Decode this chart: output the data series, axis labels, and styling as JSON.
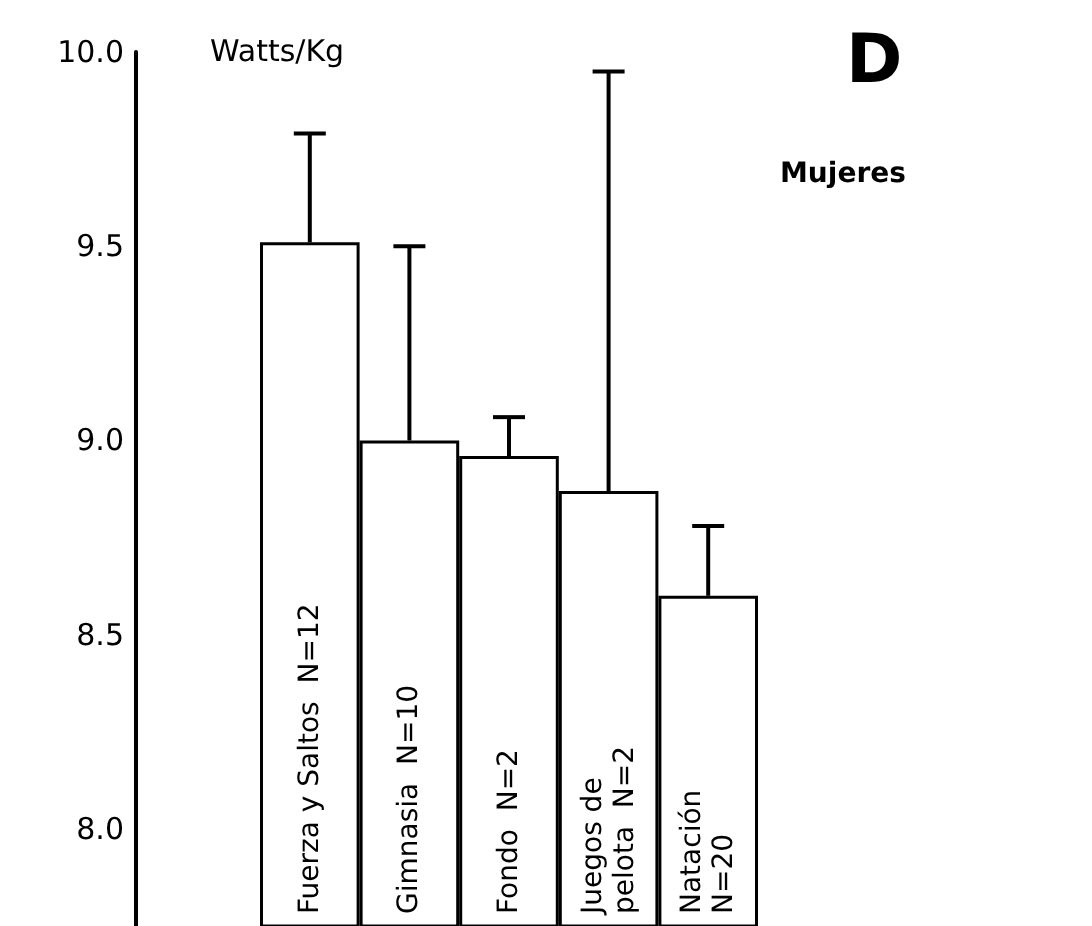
{
  "chart_data": {
    "type": "bar",
    "title": "D",
    "ylabel": "Watts/Kg",
    "annotations": [
      "Mujeres"
    ],
    "categories": [
      "Fuerza y Saltos  N=12",
      "Gimnasia  N=10",
      "Fondo  N=2",
      "Juegos de\npelota  N=2",
      "Natación\nN=20"
    ],
    "values": [
      9.51,
      9.0,
      8.96,
      8.87,
      8.6
    ],
    "errors": [
      [
        9.51,
        9.79
      ],
      [
        9.0,
        9.5
      ],
      [
        8.96,
        9.06
      ],
      [
        8.87,
        9.95
      ],
      [
        8.6,
        8.78
      ]
    ],
    "color": "#ffffff",
    "ylim": [
      7.75,
      10.0
    ],
    "yticks": [
      {
        "value": 8,
        "label": "8.0"
      },
      {
        "value": 8.5,
        "label": "8.5"
      },
      {
        "value": 9,
        "label": "9.0"
      },
      {
        "value": 9.5,
        "label": "9.5"
      },
      {
        "value": 10,
        "label": "10.0"
      }
    ],
    "grid": false
  }
}
